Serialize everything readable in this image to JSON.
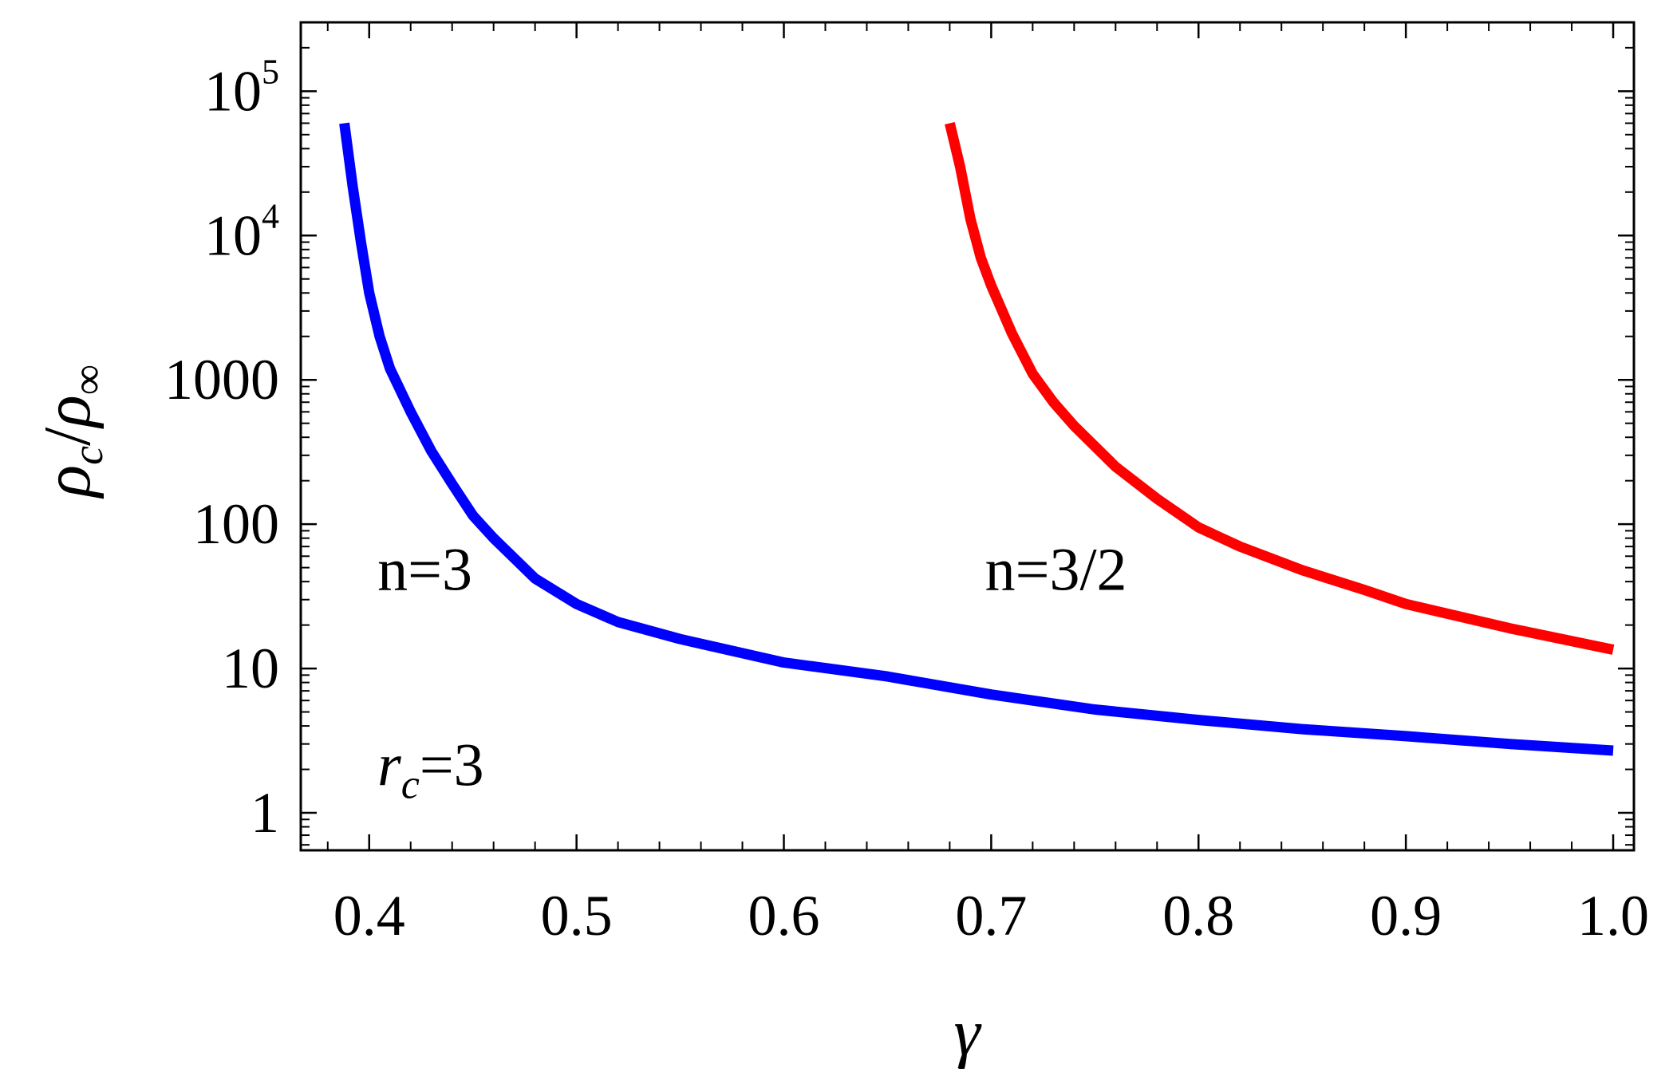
{
  "chart_data": {
    "type": "line",
    "xlabel": "γ",
    "ylabel_parts": {
      "rho": "ρ",
      "sub_c": "c",
      "slash": "/",
      "sub_inf": "∞"
    },
    "y_scale": "log",
    "xlim": [
      0.367,
      1.01
    ],
    "ylim": [
      0.55,
      300000
    ],
    "xticks": [
      {
        "value": 0.4,
        "label": "0.4"
      },
      {
        "value": 0.5,
        "label": "0.5"
      },
      {
        "value": 0.6,
        "label": "0.6"
      },
      {
        "value": 0.7,
        "label": "0.7"
      },
      {
        "value": 0.8,
        "label": "0.8"
      },
      {
        "value": 0.9,
        "label": "0.9"
      },
      {
        "value": 1.0,
        "label": "1.0"
      }
    ],
    "yticks": [
      {
        "value": 1,
        "base": "1",
        "exp": ""
      },
      {
        "value": 10,
        "base": "10",
        "exp": ""
      },
      {
        "value": 100,
        "base": "100",
        "exp": ""
      },
      {
        "value": 1000,
        "base": "1000",
        "exp": ""
      },
      {
        "value": 10000,
        "base": "10",
        "exp": "4"
      },
      {
        "value": 100000,
        "base": "10",
        "exp": "5"
      }
    ],
    "grid": false,
    "series": [
      {
        "color": "#0000ff",
        "x": [
          0.388,
          0.392,
          0.396,
          0.4,
          0.405,
          0.41,
          0.42,
          0.43,
          0.44,
          0.45,
          0.46,
          0.48,
          0.5,
          0.52,
          0.55,
          0.6,
          0.65,
          0.7,
          0.75,
          0.8,
          0.85,
          0.9,
          0.95,
          1.0
        ],
        "y": [
          60000,
          22000,
          9000,
          4000,
          2000,
          1200,
          600,
          320,
          190,
          115,
          80,
          42,
          28,
          21,
          16,
          11,
          8.8,
          6.6,
          5.2,
          4.4,
          3.8,
          3.4,
          3.0,
          2.7
        ]
      },
      {
        "color": "#ff0000",
        "x": [
          0.68,
          0.685,
          0.69,
          0.695,
          0.7,
          0.71,
          0.72,
          0.73,
          0.74,
          0.76,
          0.78,
          0.8,
          0.82,
          0.85,
          0.88,
          0.9,
          0.95,
          1.0
        ],
        "y": [
          60000,
          30000,
          13000,
          7000,
          4500,
          2100,
          1100,
          700,
          480,
          250,
          150,
          95,
          70,
          48,
          35,
          28,
          19,
          13.5
        ]
      }
    ],
    "annotations": [
      {
        "text": "n=3",
        "x": 0.404,
        "y": 35
      },
      {
        "text": "n=3/2",
        "x": 0.697,
        "y": 35
      },
      {
        "text_italic": "r",
        "sub": "c",
        "tail": "=3",
        "x": 0.404,
        "y": 1.55
      }
    ]
  }
}
